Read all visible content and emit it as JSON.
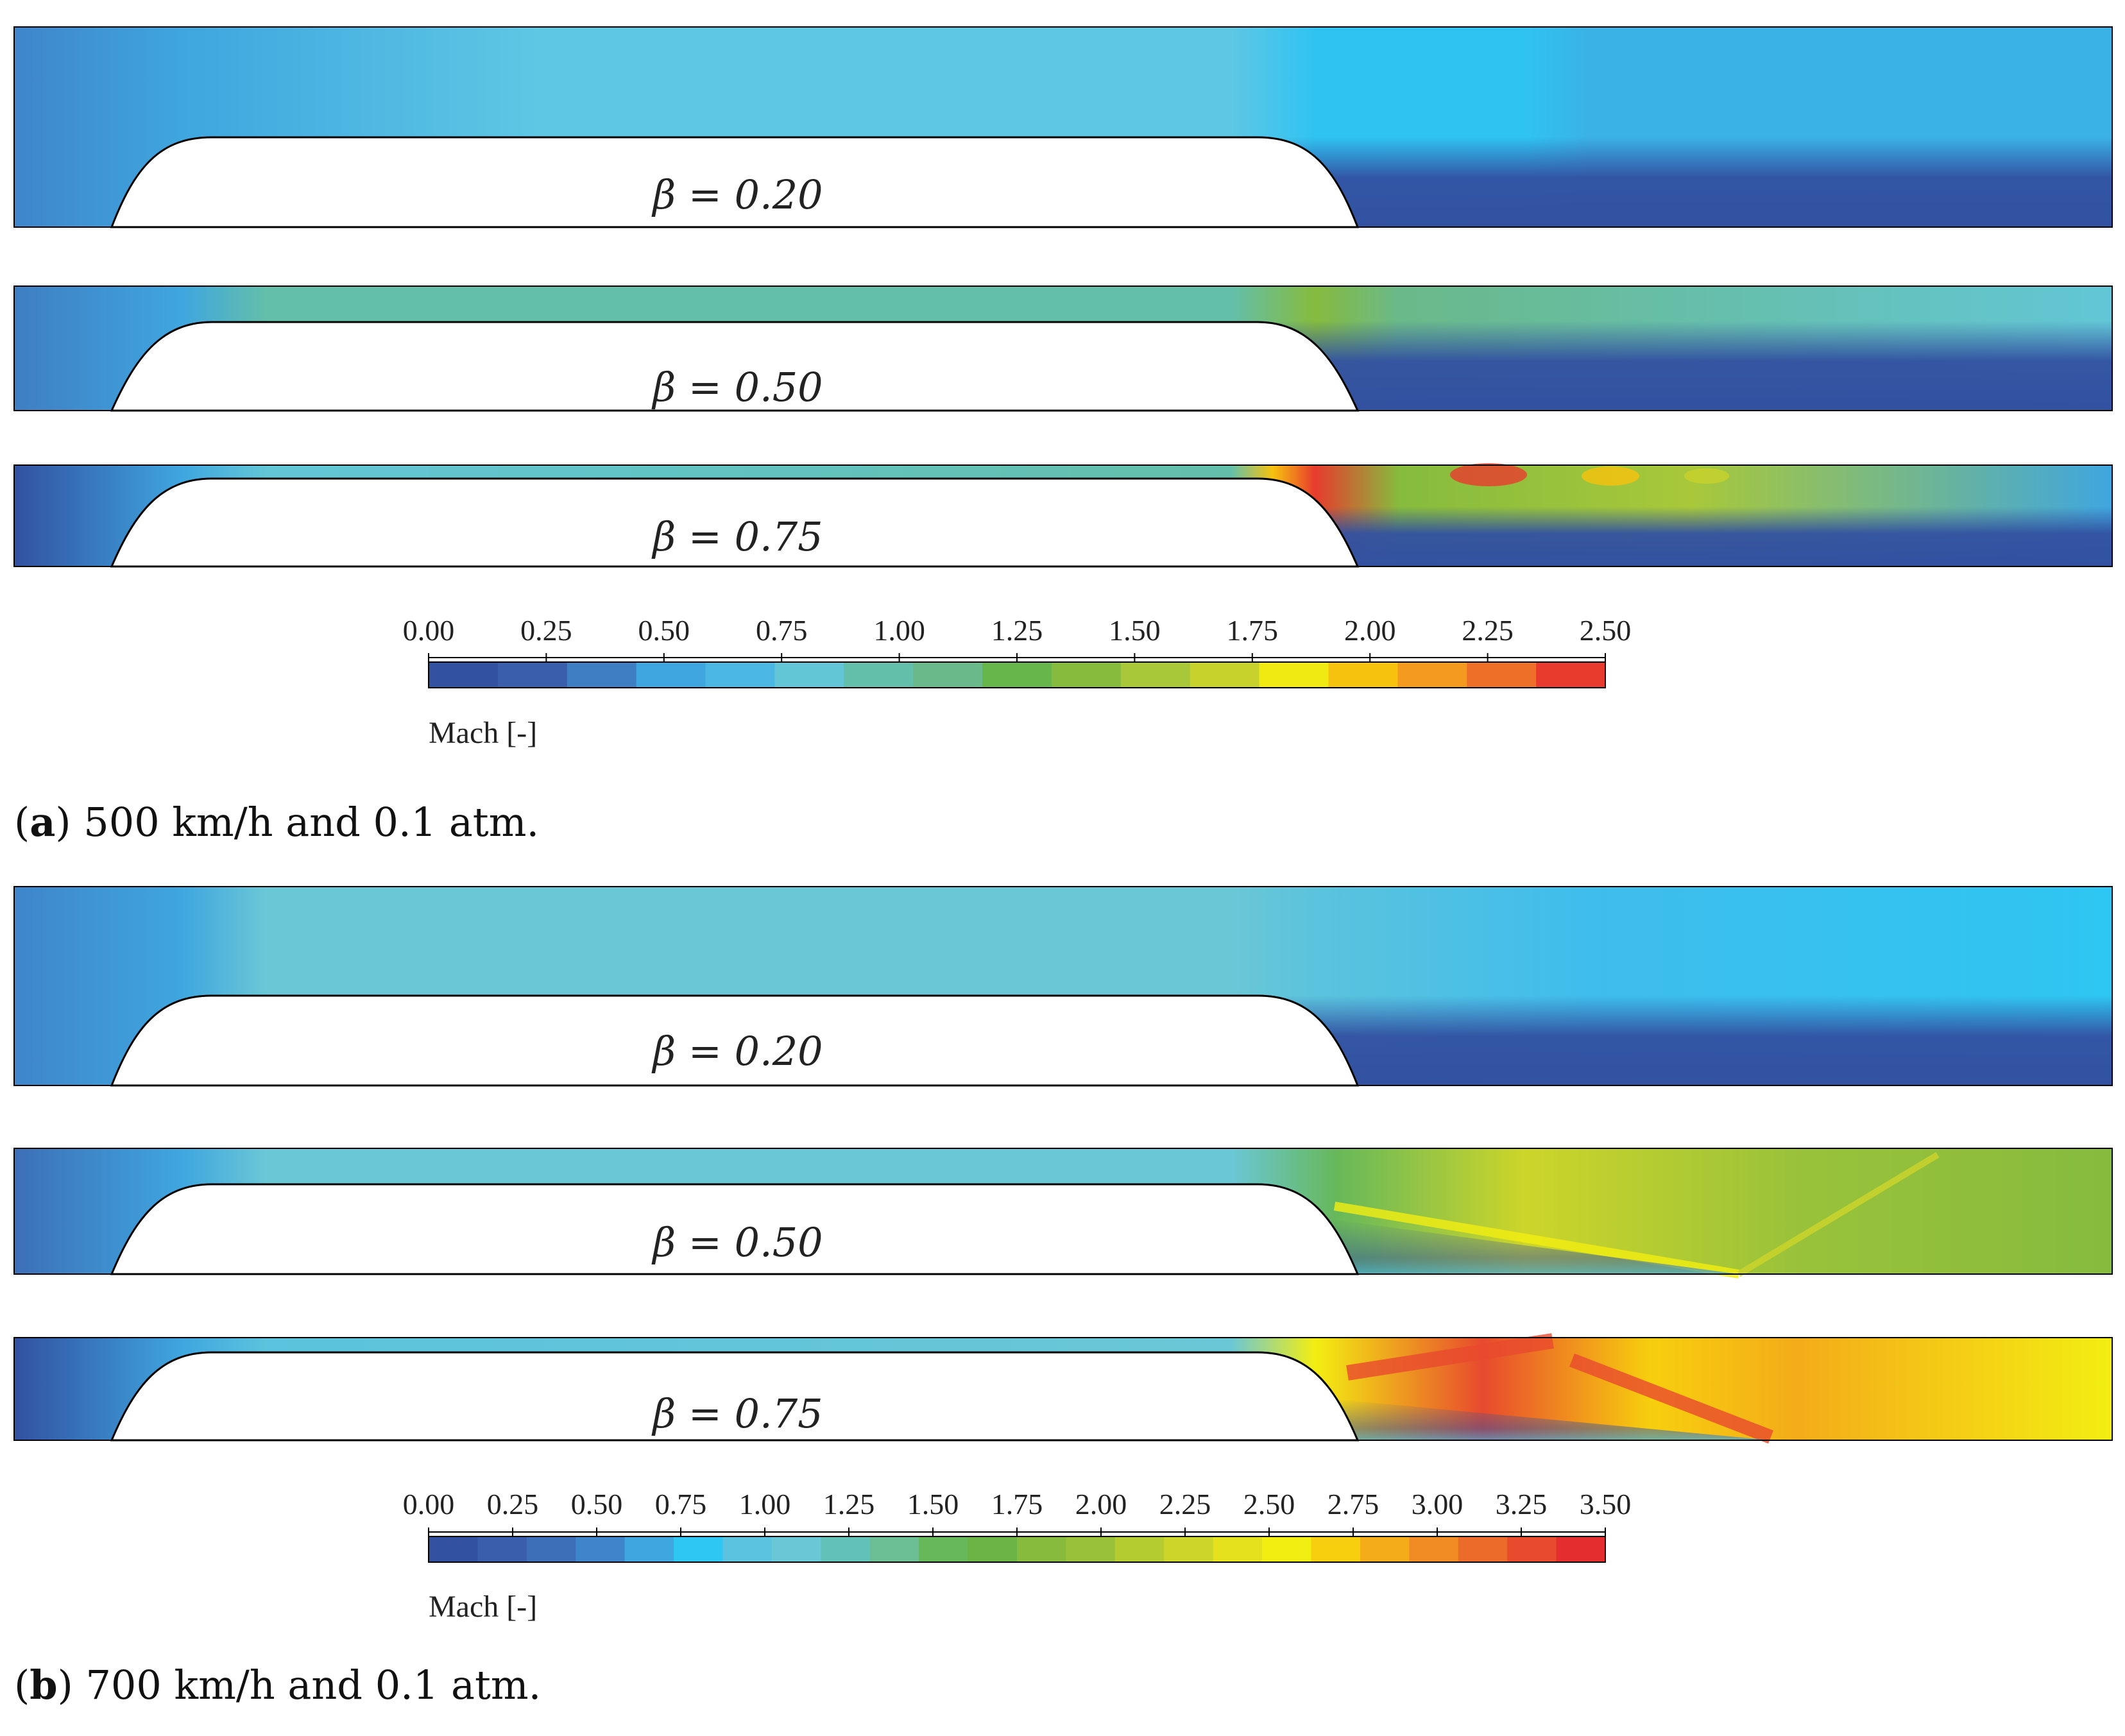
{
  "subfigures": [
    {
      "letter": "a",
      "caption": "500 km/h and 0.1 atm.",
      "panels": [
        {
          "beta_label": "β = 0.20",
          "beta": 0.2
        },
        {
          "beta_label": "β = 0.50",
          "beta": 0.5
        },
        {
          "beta_label": "β = 0.75",
          "beta": 0.75
        }
      ],
      "colorbar": {
        "title": "Mach [-]",
        "min": 0.0,
        "max": 2.5,
        "ticks": [
          "0.00",
          "0.25",
          "0.50",
          "0.75",
          "1.00",
          "1.25",
          "1.50",
          "1.75",
          "2.00",
          "2.25",
          "2.50"
        ],
        "colors": [
          "#3251a1",
          "#3a5eab",
          "#3f7ec3",
          "#3fa6df",
          "#4ab8e2",
          "#62c6d6",
          "#63bfaa",
          "#6ab98a",
          "#67b64c",
          "#86bb3e",
          "#a8c83a",
          "#c8d22c",
          "#f1ea12",
          "#f7c20e",
          "#f49a1e",
          "#ee6f28",
          "#e83b2d"
        ]
      }
    },
    {
      "letter": "b",
      "caption": "700 km/h and 0.1 atm.",
      "panels": [
        {
          "beta_label": "β = 0.20",
          "beta": 0.2
        },
        {
          "beta_label": "β = 0.50",
          "beta": 0.5
        },
        {
          "beta_label": "β = 0.75",
          "beta": 0.75
        }
      ],
      "colorbar": {
        "title": "Mach [-]",
        "min": 0.0,
        "max": 3.5,
        "ticks": [
          "0.00",
          "0.25",
          "0.50",
          "0.75",
          "1.00",
          "1.25",
          "1.50",
          "1.75",
          "2.00",
          "2.25",
          "2.50",
          "2.75",
          "3.00",
          "3.25",
          "3.50"
        ],
        "colors": [
          "#3251a1",
          "#3a5eab",
          "#3d6fb8",
          "#3f85cb",
          "#3fa6df",
          "#2ec6f2",
          "#5bc3dd",
          "#6ac7d6",
          "#62c1b8",
          "#6cbf94",
          "#67b85a",
          "#6bb445",
          "#86bb3e",
          "#99c23a",
          "#b5cc31",
          "#cdd52a",
          "#e5e11d",
          "#f3ee12",
          "#f7cf0e",
          "#f4ac19",
          "#f18b24",
          "#ec6a2a",
          "#e84a2e",
          "#e32d2e"
        ]
      }
    }
  ],
  "colors": {
    "low": "#3251a1",
    "free_stream_a": "#2fc3f2",
    "throat_a": "#5ec7e4",
    "wake_a": "#3ab2e6",
    "supersonic": "#a8c83a",
    "peak": "#e83b2d"
  }
}
